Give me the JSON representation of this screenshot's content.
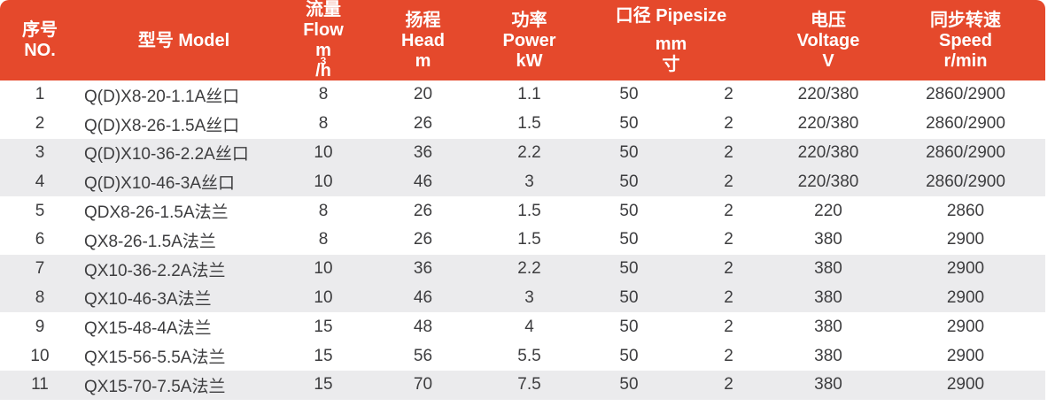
{
  "table_title": "pump-specification-table",
  "header": {
    "no_zh": "序号",
    "no_en": "NO.",
    "model": "型号 Model",
    "flow_zh": "流量",
    "flow_en": "Flow",
    "flow_unit_base": "m",
    "flow_unit_sup": "3",
    "flow_unit_rest": "/h",
    "head_zh": "扬程",
    "head_en": "Head",
    "head_unit": "m",
    "power_zh": "功率",
    "power_en": "Power",
    "power_unit": "kW",
    "pipesize_label": "口径 Pipesize",
    "pipesize_mm": "mm",
    "pipesize_inch": "寸",
    "voltage_zh": "电压",
    "voltage_en": "Voltage",
    "voltage_unit": "V",
    "speed_zh": "同步转速",
    "speed_en": "Speed",
    "speed_unit": "r/min"
  },
  "colors": {
    "header_bg": "#E5492C",
    "header_text": "#FFFFFF",
    "row_alt_bg": "#EBEBED",
    "row_bg": "#FFFFFF",
    "text": "#3D3D3F"
  },
  "chart_data": {
    "type": "table",
    "columns": [
      "序号 NO.",
      "型号 Model",
      "流量 Flow m³/h",
      "扬程 Head m",
      "功率 Power kW",
      "口径 Pipesize mm",
      "口径 Pipesize 寸",
      "电压 Voltage V",
      "同步转速 Speed r/min"
    ],
    "rows": [
      [
        "1",
        "Q(D)X8-20-1.1A丝口",
        "8",
        "20",
        "1.1",
        "50",
        "2",
        "220/380",
        "2860/2900"
      ],
      [
        "2",
        "Q(D)X8-26-1.5A丝口",
        "8",
        "26",
        "1.5",
        "50",
        "2",
        "220/380",
        "2860/2900"
      ],
      [
        "3",
        "Q(D)X10-36-2.2A丝口",
        "10",
        "36",
        "2.2",
        "50",
        "2",
        "220/380",
        "2860/2900"
      ],
      [
        "4",
        "Q(D)X10-46-3A丝口",
        "10",
        "46",
        "3",
        "50",
        "2",
        "220/380",
        "2860/2900"
      ],
      [
        "5",
        "QDX8-26-1.5A法兰",
        "8",
        "26",
        "1.5",
        "50",
        "2",
        "220",
        "2860"
      ],
      [
        "6",
        "QX8-26-1.5A法兰",
        "8",
        "26",
        "1.5",
        "50",
        "2",
        "380",
        "2900"
      ],
      [
        "7",
        "QX10-36-2.2A法兰",
        "10",
        "36",
        "2.2",
        "50",
        "2",
        "380",
        "2900"
      ],
      [
        "8",
        "QX10-46-3A法兰",
        "10",
        "46",
        "3",
        "50",
        "2",
        "380",
        "2900"
      ],
      [
        "9",
        "QX15-48-4A法兰",
        "15",
        "48",
        "4",
        "50",
        "2",
        "380",
        "2900"
      ],
      [
        "10",
        "QX15-56-5.5A法兰",
        "15",
        "56",
        "5.5",
        "50",
        "2",
        "380",
        "2900"
      ],
      [
        "11",
        "QX15-70-7.5A法兰",
        "15",
        "70",
        "7.5",
        "50",
        "2",
        "380",
        "2900"
      ]
    ],
    "layout": {
      "striping": "rows shaded in pairs: 3-4, 7-8, 11",
      "header_corner_radius_px": 10
    }
  }
}
